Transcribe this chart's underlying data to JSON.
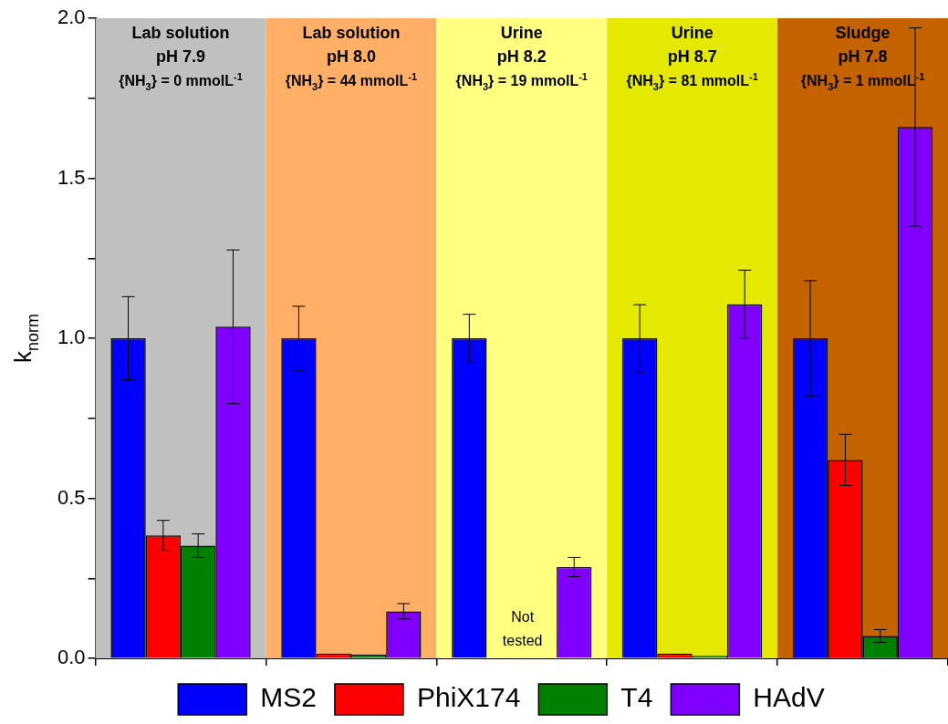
{
  "chart_data": {
    "type": "bar",
    "ylabel": "k$_{norm}$",
    "categories": [
      "Lab solution\npH 7.9\n{NH$_{3}$} = 0 mmolL$^{-1}$",
      "Lab solution\npH 8.0\n{NH$_{3}$} = 44 mmolL$^{-1}$",
      "Urine\npH 8.2\n{NH$_{3}$} = 19 mmolL$^{-1}$",
      "Urine\npH 8.7\n{NH$_{3}$} = 81 mmolL$^{-1}$",
      "Sludge\npH 7.8\n{NH$_{3}$} = 1 mmolL$^{-1}$"
    ],
    "series": [
      {
        "name": "MS2",
        "color": "#0000ff",
        "values": [
          1,
          1,
          1,
          1,
          1
        ],
        "errors": [
          0.13,
          0.1,
          0.075,
          0.105,
          0.18
        ]
      },
      {
        "name": "PhiX174",
        "color": "#ff0000",
        "values": [
          0.384,
          0.015,
          null,
          0.015,
          0.62
        ],
        "errors": [
          0.047,
          null,
          null,
          null,
          0.08
        ],
        "value_labels": [
          null,
          null,
          "Not tested",
          null,
          null
        ]
      },
      {
        "name": "T4",
        "color": "#008000",
        "values": [
          0.352,
          0.012,
          null,
          0.008,
          0.07
        ],
        "errors": [
          0.037,
          null,
          null,
          null,
          0.02
        ]
      },
      {
        "name": "HAdV",
        "color": "#8000ff",
        "values": [
          1.036,
          0.147,
          0.285,
          1.106,
          1.66
        ],
        "errors": [
          0.24,
          0.024,
          0.03,
          0.107,
          0.31
        ]
      }
    ],
    "bands": [
      {
        "axis": "x",
        "from": "Lab solution\npH 7.9\n{NH$_{3}$} = 0 mmolL$^{-1}$",
        "to": "Lab solution\npH 7.9\n{NH$_{3}$} = 0 mmolL$^{-1}$",
        "color": "#c0c0c0"
      },
      {
        "axis": "x",
        "from": "Lab solution\npH 8.0\n{NH$_{3}$} = 44 mmolL$^{-1}$",
        "to": "Lab solution\npH 8.0\n{NH$_{3}$} = 44 mmolL$^{-1}$",
        "color": "#ffb066"
      },
      {
        "axis": "x",
        "from": "Urine\npH 8.2\n{NH$_{3}$} = 19 mmolL$^{-1}$",
        "to": "Urine\npH 8.2\n{NH$_{3}$} = 19 mmolL$^{-1}$",
        "color": "#ffff80"
      },
      {
        "axis": "x",
        "from": "Urine\npH 8.7\n{NH$_{3}$} = 81 mmolL$^{-1}$",
        "to": "Urine\npH 8.7\n{NH$_{3}$} = 81 mmolL$^{-1}$",
        "color": "#e5e800"
      },
      {
        "axis": "x",
        "from": "Sludge\npH 7.8\n{NH$_{3}$} = 1 mmolL$^{-1}$",
        "to": "Sludge\npH 7.8\n{NH$_{3}$} = 1 mmolL$^{-1}$",
        "color": "#c56200"
      }
    ],
    "ylim": [
      0,
      2
    ],
    "yticks": [
      {
        "value": 0,
        "label": "0.0"
      },
      {
        "value": 0.25,
        "label": null
      },
      0.5,
      {
        "value": 0.75,
        "label": null
      },
      {
        "value": 1,
        "label": "1.0"
      },
      {
        "value": 1.25,
        "label": null
      },
      1.5,
      {
        "value": 1.75,
        "label": null
      },
      {
        "value": 2,
        "label": "2.0"
      }
    ],
    "grid": false,
    "legend": "bottom"
  }
}
